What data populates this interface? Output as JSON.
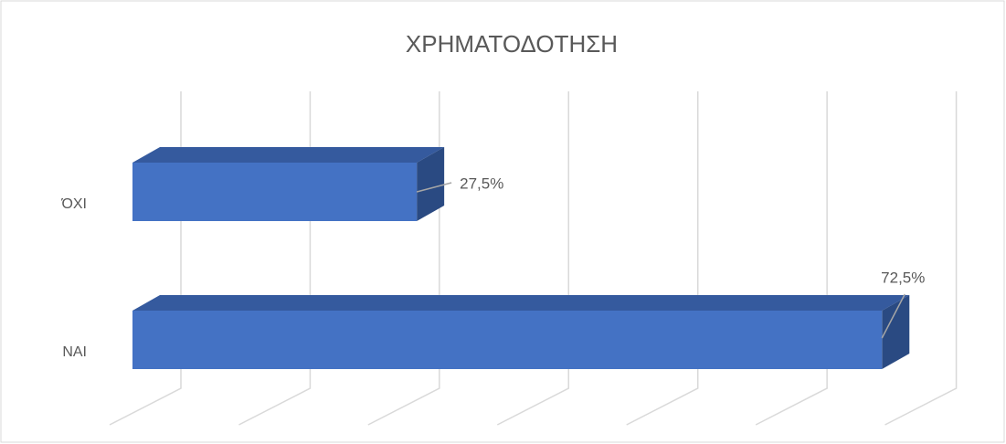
{
  "chart_data": {
    "type": "bar3d_horizontal",
    "title": "ΧΡΗΜΑΤΟΔΟΤΗΣΗ",
    "categories": [
      "ΌΧΙ",
      "ΝΑΙ"
    ],
    "values": [
      27.5,
      72.5
    ],
    "value_labels": [
      "27,5%",
      "72,5%"
    ],
    "color": "#4472c4",
    "xlim": [
      0,
      87.5
    ],
    "xticks": [
      0,
      12.5,
      25,
      37.5,
      50,
      62.5,
      75,
      87.5
    ],
    "grid": true
  }
}
